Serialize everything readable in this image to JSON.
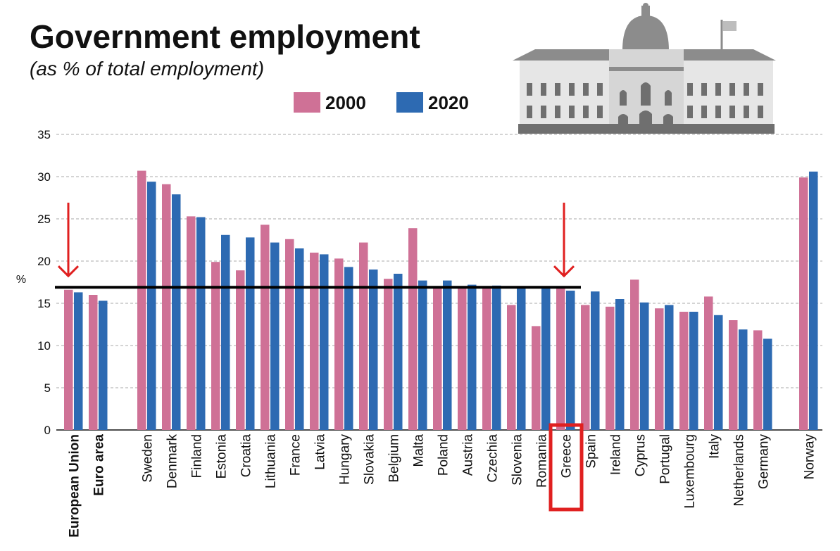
{
  "chart_data": {
    "type": "bar",
    "title": "Government employment",
    "subtitle": "(as % of total employment)",
    "ylabel": "%",
    "xlabel": "",
    "ylim": [
      0,
      35
    ],
    "yticks": [
      0,
      5,
      10,
      15,
      20,
      25,
      30,
      35
    ],
    "grid": true,
    "legend_position": "top",
    "categories": [
      "European Union",
      "Euro area",
      "Sweden",
      "Denmark",
      "Finland",
      "Estonia",
      "Croatia",
      "Lithuania",
      "France",
      "Latvia",
      "Hungary",
      "Slovakia",
      "Belgium",
      "Malta",
      "Poland",
      "Austria",
      "Czechia",
      "Slovenia",
      "Romania",
      "Greece",
      "Spain",
      "Ireland",
      "Cyprus",
      "Portugal",
      "Luxembourg",
      "Italy",
      "Netherlands",
      "Germany",
      "Norway"
    ],
    "bold_categories": [
      "European Union",
      "Euro area"
    ],
    "series": [
      {
        "name": "2000",
        "color": "#cf7196",
        "values": [
          16.6,
          16.0,
          30.7,
          29.1,
          25.3,
          19.9,
          18.9,
          24.3,
          22.6,
          21.0,
          20.3,
          22.2,
          17.9,
          23.9,
          17.0,
          17.0,
          17.0,
          14.8,
          12.3,
          16.9,
          14.8,
          14.6,
          17.8,
          14.4,
          14.0,
          15.8,
          13.0,
          11.8,
          29.9
        ]
      },
      {
        "name": "2020",
        "color": "#2d6ab2",
        "values": [
          16.3,
          15.3,
          29.4,
          27.9,
          25.2,
          23.1,
          22.8,
          22.2,
          21.5,
          20.8,
          19.3,
          19.0,
          18.5,
          17.7,
          17.7,
          17.2,
          17.1,
          17.0,
          17.0,
          16.5,
          16.4,
          15.5,
          15.1,
          14.8,
          14.0,
          13.6,
          11.9,
          10.8,
          30.6
        ]
      }
    ],
    "annotations": {
      "reference_line_value": 16.9,
      "arrow_targets": [
        "European Union",
        "Greece"
      ],
      "highlighted_category": "Greece"
    }
  },
  "colors": {
    "series_2000": "#cf7196",
    "series_2020": "#2d6ab2",
    "annotation_red": "#e02020",
    "reference_line": "#000000",
    "building_grey": "#8c8c8c"
  },
  "decor": {
    "building_icon": "government-building-icon"
  }
}
